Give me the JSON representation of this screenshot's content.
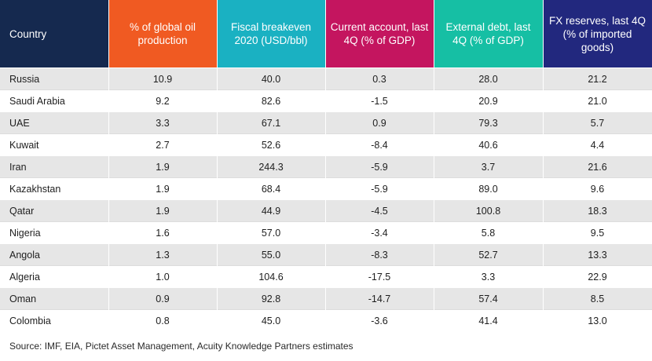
{
  "chart_data": {
    "type": "table",
    "columns": [
      {
        "label": "Country",
        "color": "#15294f"
      },
      {
        "label": "% of global oil production",
        "color": "#f05a22"
      },
      {
        "label": "Fiscal breakeven 2020 (USD/bbl)",
        "color": "#1ab1c2"
      },
      {
        "label": "Current account, last 4Q (% of GDP)",
        "color": "#c4155f"
      },
      {
        "label": "External debt, last 4Q (% of GDP)",
        "color": "#16bfa4"
      },
      {
        "label": "FX reserves, last 4Q (% of imported goods)",
        "color": "#22287e"
      }
    ],
    "rows": [
      [
        "Russia",
        "10.9",
        "40.0",
        "0.3",
        "28.0",
        "21.2"
      ],
      [
        "Saudi Arabia",
        "9.2",
        "82.6",
        "-1.5",
        "20.9",
        "21.0"
      ],
      [
        "UAE",
        "3.3",
        "67.1",
        "0.9",
        "79.3",
        "5.7"
      ],
      [
        "Kuwait",
        "2.7",
        "52.6",
        "-8.4",
        "40.6",
        "4.4"
      ],
      [
        "Iran",
        "1.9",
        "244.3",
        "-5.9",
        "3.7",
        "21.6"
      ],
      [
        "Kazakhstan",
        "1.9",
        "68.4",
        "-5.9",
        "89.0",
        "9.6"
      ],
      [
        "Qatar",
        "1.9",
        "44.9",
        "-4.5",
        "100.8",
        "18.3"
      ],
      [
        "Nigeria",
        "1.6",
        "57.0",
        "-3.4",
        "5.8",
        "9.5"
      ],
      [
        "Angola",
        "1.3",
        "55.0",
        "-8.3",
        "52.7",
        "13.3"
      ],
      [
        "Algeria",
        "1.0",
        "104.6",
        "-17.5",
        "3.3",
        "22.9"
      ],
      [
        "Oman",
        "0.9",
        "92.8",
        "-14.7",
        "57.4",
        "8.5"
      ],
      [
        "Colombia",
        "0.8",
        "45.0",
        "-3.6",
        "41.4",
        "13.0"
      ]
    ]
  },
  "source": "Source: IMF, EIA, Pictet Asset Management, Acuity Knowledge Partners estimates"
}
